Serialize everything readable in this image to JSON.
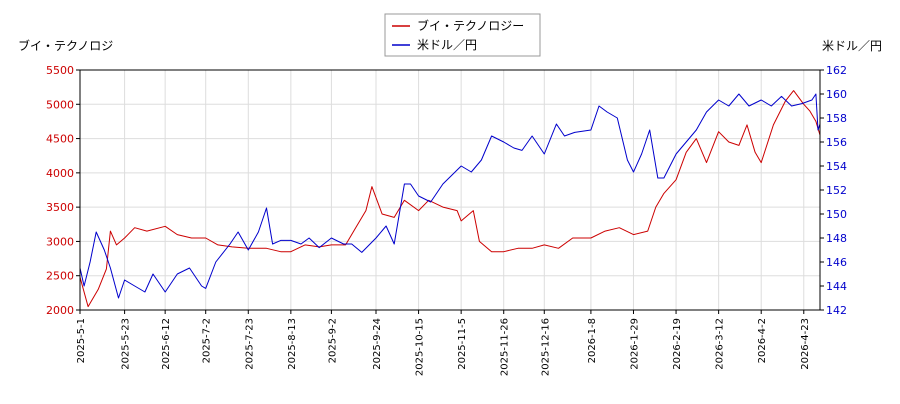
{
  "chart_data": {
    "type": "line",
    "title": "",
    "legend_placement": "top-center",
    "grid": true,
    "left_axis": {
      "label": "ブイ・テクノロジ",
      "min": 2000,
      "max": 5500,
      "ticks": [
        2000,
        2500,
        3000,
        3500,
        4000,
        4500,
        5000,
        5500
      ]
    },
    "right_axis": {
      "label": "米ドル／円",
      "min": 142,
      "max": 162,
      "ticks": [
        142,
        144,
        146,
        148,
        150,
        152,
        154,
        156,
        158,
        160,
        162
      ]
    },
    "x_ticks": [
      "2025-5-1",
      "2025-5-23",
      "2025-6-12",
      "2025-7-2",
      "2025-7-23",
      "2025-8-13",
      "2025-9-2",
      "2025-9-24",
      "2025-10-15",
      "2025-11-5",
      "2025-11-26",
      "2025-12-16",
      "2026-1-8",
      "2026-1-29",
      "2026-2-19",
      "2026-3-12",
      "2026-4-2",
      "2026-4-23"
    ],
    "x_range": [
      "2025-5-1",
      "2026-5-1"
    ],
    "series": [
      {
        "name": "ブイ・テクノロジー",
        "axis": "left",
        "color": "#cc0000",
        "points": [
          [
            "2025-5-1",
            2480
          ],
          [
            "2025-5-5",
            2050
          ],
          [
            "2025-5-10",
            2300
          ],
          [
            "2025-5-14",
            2600
          ],
          [
            "2025-5-16",
            3150
          ],
          [
            "2025-5-19",
            2950
          ],
          [
            "2025-5-23",
            3050
          ],
          [
            "2025-5-28",
            3200
          ],
          [
            "2025-6-3",
            3150
          ],
          [
            "2025-6-12",
            3220
          ],
          [
            "2025-6-18",
            3100
          ],
          [
            "2025-6-25",
            3050
          ],
          [
            "2025-7-2",
            3050
          ],
          [
            "2025-7-8",
            2950
          ],
          [
            "2025-7-15",
            2920
          ],
          [
            "2025-7-23",
            2900
          ],
          [
            "2025-8-1",
            2900
          ],
          [
            "2025-8-8",
            2850
          ],
          [
            "2025-8-13",
            2850
          ],
          [
            "2025-8-20",
            2950
          ],
          [
            "2025-8-27",
            2920
          ],
          [
            "2025-9-2",
            2950
          ],
          [
            "2025-9-9",
            2950
          ],
          [
            "2025-9-14",
            3200
          ],
          [
            "2025-9-19",
            3450
          ],
          [
            "2025-9-22",
            3800
          ],
          [
            "2025-9-27",
            3400
          ],
          [
            "2025-10-3",
            3350
          ],
          [
            "2025-10-8",
            3600
          ],
          [
            "2025-10-15",
            3450
          ],
          [
            "2025-10-20",
            3600
          ],
          [
            "2025-10-27",
            3500
          ],
          [
            "2025-11-3",
            3450
          ],
          [
            "2025-11-5",
            3300
          ],
          [
            "2025-11-11",
            3450
          ],
          [
            "2025-11-14",
            3000
          ],
          [
            "2025-11-20",
            2850
          ],
          [
            "2025-11-26",
            2850
          ],
          [
            "2025-12-3",
            2900
          ],
          [
            "2025-12-10",
            2900
          ],
          [
            "2025-12-16",
            2950
          ],
          [
            "2025-12-23",
            2900
          ],
          [
            "2025-12-30",
            3050
          ],
          [
            "2026-1-8",
            3050
          ],
          [
            "2026-1-15",
            3150
          ],
          [
            "2026-1-22",
            3200
          ],
          [
            "2026-1-29",
            3100
          ],
          [
            "2026-2-5",
            3150
          ],
          [
            "2026-2-9",
            3500
          ],
          [
            "2026-2-13",
            3700
          ],
          [
            "2026-2-19",
            3900
          ],
          [
            "2026-2-24",
            4300
          ],
          [
            "2026-3-1",
            4500
          ],
          [
            "2026-3-6",
            4150
          ],
          [
            "2026-3-12",
            4600
          ],
          [
            "2026-3-17",
            4450
          ],
          [
            "2026-3-22",
            4400
          ],
          [
            "2026-3-26",
            4700
          ],
          [
            "2026-3-30",
            4300
          ],
          [
            "2026-4-2",
            4150
          ],
          [
            "2026-4-8",
            4700
          ],
          [
            "2026-4-14",
            5050
          ],
          [
            "2026-4-18",
            5200
          ],
          [
            "2026-4-23",
            5000
          ],
          [
            "2026-4-26",
            4900
          ],
          [
            "2026-4-29",
            4750
          ],
          [
            "2026-5-1",
            4550
          ]
        ]
      },
      {
        "name": "米ドル／円",
        "axis": "right",
        "color": "#0000cc",
        "points": [
          [
            "2025-5-1",
            145.5
          ],
          [
            "2025-5-3",
            144.0
          ],
          [
            "2025-5-6",
            146.0
          ],
          [
            "2025-5-9",
            148.5
          ],
          [
            "2025-5-13",
            147.0
          ],
          [
            "2025-5-16",
            145.5
          ],
          [
            "2025-5-20",
            143.0
          ],
          [
            "2025-5-23",
            144.5
          ],
          [
            "2025-5-28",
            144.0
          ],
          [
            "2025-6-2",
            143.5
          ],
          [
            "2025-6-6",
            145.0
          ],
          [
            "2025-6-12",
            143.5
          ],
          [
            "2025-6-18",
            145.0
          ],
          [
            "2025-6-24",
            145.5
          ],
          [
            "2025-6-30",
            144.0
          ],
          [
            "2025-7-2",
            143.8
          ],
          [
            "2025-7-7",
            146.0
          ],
          [
            "2025-7-14",
            147.5
          ],
          [
            "2025-7-18",
            148.5
          ],
          [
            "2025-7-23",
            147.0
          ],
          [
            "2025-7-28",
            148.5
          ],
          [
            "2025-8-1",
            150.5
          ],
          [
            "2025-8-4",
            147.5
          ],
          [
            "2025-8-8",
            147.8
          ],
          [
            "2025-8-13",
            147.8
          ],
          [
            "2025-8-18",
            147.5
          ],
          [
            "2025-8-22",
            148.0
          ],
          [
            "2025-8-27",
            147.2
          ],
          [
            "2025-9-2",
            148.0
          ],
          [
            "2025-9-8",
            147.5
          ],
          [
            "2025-9-12",
            147.5
          ],
          [
            "2025-9-17",
            146.8
          ],
          [
            "2025-9-24",
            148.0
          ],
          [
            "2025-9-29",
            149.0
          ],
          [
            "2025-10-3",
            147.5
          ],
          [
            "2025-10-8",
            152.5
          ],
          [
            "2025-10-11",
            152.5
          ],
          [
            "2025-10-15",
            151.5
          ],
          [
            "2025-10-21",
            151.0
          ],
          [
            "2025-10-27",
            152.5
          ],
          [
            "2025-11-5",
            154.0
          ],
          [
            "2025-11-10",
            153.5
          ],
          [
            "2025-11-15",
            154.5
          ],
          [
            "2025-11-20",
            156.5
          ],
          [
            "2025-11-26",
            156.0
          ],
          [
            "2025-12-1",
            155.5
          ],
          [
            "2025-12-5",
            155.3
          ],
          [
            "2025-12-10",
            156.5
          ],
          [
            "2025-12-16",
            155.0
          ],
          [
            "2025-12-22",
            157.5
          ],
          [
            "2025-12-26",
            156.5
          ],
          [
            "2025-12-31",
            156.8
          ],
          [
            "2026-1-8",
            157.0
          ],
          [
            "2026-1-12",
            159.0
          ],
          [
            "2026-1-16",
            158.5
          ],
          [
            "2026-1-21",
            158.0
          ],
          [
            "2026-1-26",
            154.5
          ],
          [
            "2026-1-29",
            153.5
          ],
          [
            "2026-2-2",
            155.0
          ],
          [
            "2026-2-6",
            157.0
          ],
          [
            "2026-2-10",
            153.0
          ],
          [
            "2026-2-13",
            153.0
          ],
          [
            "2026-2-19",
            155.0
          ],
          [
            "2026-2-24",
            156.0
          ],
          [
            "2026-3-1",
            157.0
          ],
          [
            "2026-3-6",
            158.5
          ],
          [
            "2026-3-12",
            159.5
          ],
          [
            "2026-3-17",
            159.0
          ],
          [
            "2026-3-22",
            160.0
          ],
          [
            "2026-3-27",
            159.0
          ],
          [
            "2026-4-2",
            159.5
          ],
          [
            "2026-4-7",
            159.0
          ],
          [
            "2026-4-12",
            159.8
          ],
          [
            "2026-4-17",
            159.0
          ],
          [
            "2026-4-22",
            159.2
          ],
          [
            "2026-4-27",
            159.5
          ],
          [
            "2026-4-29",
            160.0
          ],
          [
            "2026-4-30",
            157.0
          ],
          [
            "2026-5-1",
            157.5
          ]
        ]
      }
    ]
  }
}
